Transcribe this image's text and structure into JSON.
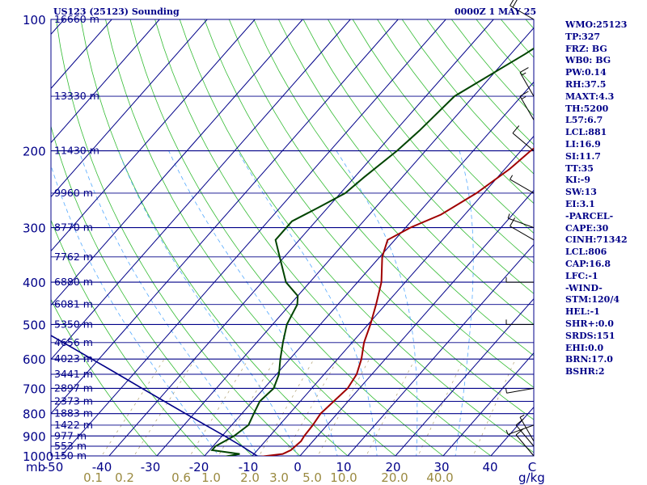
{
  "header": {
    "station": "US123 (25123) Sounding",
    "timestamp": "0000Z  1 MAY 25"
  },
  "indices": [
    "WMO:25123",
    "TP:327",
    "FRZ: BG",
    "WB0: BG",
    "PW:0.14",
    "RH:37.5",
    "MAXT:4.3",
    "TH:5200",
    "L57:6.7",
    "LCL:881",
    "LI:16.9",
    "SI:11.7",
    "TT:35",
    "KI:-9",
    "SW:13",
    "EI:3.1",
    "-PARCEL-",
    "CAPE:30",
    "CINH:71342",
    "LCL:806",
    "CAP:16.8",
    "LFC:-1",
    "-WIND-",
    "STM:120/4",
    "HEL:-1",
    "SHR+:0.0",
    "SRDS:151",
    "EHI:0.0",
    "BRN:17.0",
    "BSHR:2"
  ],
  "chart_data": {
    "type": "line",
    "title": "",
    "xlabel": "",
    "ylabel": "",
    "pressure_unit": "mb",
    "mixing_ratio_unit": "g/kg",
    "pressure_ticks": [
      100,
      200,
      300,
      400,
      500,
      600,
      700,
      800,
      900,
      1000
    ],
    "temperature_ticks": [
      "-50",
      "-40",
      "-30",
      "-20",
      "-10",
      "0",
      "10",
      "20",
      "30",
      "40",
      "C"
    ],
    "mixing_ratio_ticks": [
      "0.1",
      "0.2",
      "0.6",
      "1.0",
      "2.0",
      "3.0",
      "5.0",
      "10.0",
      "20.0",
      "40.0"
    ],
    "height_labels": [
      {
        "p": 100,
        "label": "16660 m"
      },
      {
        "p": 150,
        "label": "13330 m"
      },
      {
        "p": 200,
        "label": "11430 m"
      },
      {
        "p": 250,
        "label": "9960 m"
      },
      {
        "p": 300,
        "label": "8770 m"
      },
      {
        "p": 350,
        "label": "7762 m"
      },
      {
        "p": 400,
        "label": "6880 m"
      },
      {
        "p": 450,
        "label": "6081 m"
      },
      {
        "p": 500,
        "label": "5350 m"
      },
      {
        "p": 550,
        "label": "4656 m"
      },
      {
        "p": 600,
        "label": "4023 m"
      },
      {
        "p": 650,
        "label": "3441 m"
      },
      {
        "p": 700,
        "label": "2897 m"
      },
      {
        "p": 750,
        "label": "2373 m"
      },
      {
        "p": 800,
        "label": "1883 m"
      },
      {
        "p": 850,
        "label": "1422 m"
      },
      {
        "p": 900,
        "label": "977 m"
      },
      {
        "p": 950,
        "label": "553 m"
      },
      {
        "p": 1000,
        "label": "150 m"
      }
    ],
    "series": [
      {
        "id": "temperature",
        "color": "#a00000",
        "points": [
          [
            1005,
            -8.5
          ],
          [
            990,
            -4
          ],
          [
            970,
            -3
          ],
          [
            925,
            -2.5
          ],
          [
            900,
            -2.8
          ],
          [
            850,
            -3
          ],
          [
            800,
            -3.5
          ],
          [
            700,
            -2.5
          ],
          [
            650,
            -3.2
          ],
          [
            600,
            -5
          ],
          [
            550,
            -7.5
          ],
          [
            500,
            -9.5
          ],
          [
            450,
            -12
          ],
          [
            400,
            -15
          ],
          [
            350,
            -19.5
          ],
          [
            320,
            -21.5
          ],
          [
            300,
            -19
          ],
          [
            280,
            -15
          ],
          [
            250,
            -11.5
          ],
          [
            220,
            -9
          ],
          [
            200,
            -8
          ],
          [
            180,
            -6
          ],
          [
            150,
            2.5
          ],
          [
            120,
            10.5
          ],
          [
            100,
            16.5
          ]
        ]
      },
      {
        "id": "dewpoint",
        "color": "#004400",
        "points": [
          [
            1005,
            -16
          ],
          [
            990,
            -13
          ],
          [
            970,
            -19.5
          ],
          [
            950,
            -19.5
          ],
          [
            925,
            -18.5
          ],
          [
            900,
            -17.5
          ],
          [
            850,
            -16.5
          ],
          [
            800,
            -17.5
          ],
          [
            750,
            -18.5
          ],
          [
            700,
            -18
          ],
          [
            650,
            -19.5
          ],
          [
            600,
            -22
          ],
          [
            550,
            -24.5
          ],
          [
            500,
            -27
          ],
          [
            450,
            -28.5
          ],
          [
            430,
            -30
          ],
          [
            400,
            -35
          ],
          [
            350,
            -41
          ],
          [
            320,
            -45
          ],
          [
            290,
            -45
          ],
          [
            270,
            -42
          ],
          [
            250,
            -39
          ],
          [
            230,
            -38
          ],
          [
            200,
            -36
          ],
          [
            180,
            -35
          ],
          [
            150,
            -34
          ],
          [
            120,
            -27
          ],
          [
            100,
            -22
          ]
        ]
      },
      {
        "id": "parcel",
        "color": "#000088",
        "points": [
          [
            1005,
            -8.5
          ],
          [
            950,
            -14
          ],
          [
            900,
            -19.5
          ],
          [
            850,
            -25.5
          ],
          [
            800,
            -31.8
          ],
          [
            750,
            -38.5
          ],
          [
            700,
            -45.6
          ],
          [
            650,
            -53.2
          ],
          [
            600,
            -61.5
          ],
          [
            550,
            -70.5
          ],
          [
            500,
            -80.5
          ],
          [
            450,
            -91.5
          ],
          [
            400,
            -104
          ],
          [
            350,
            -118
          ],
          [
            300,
            -134.5
          ],
          [
            250,
            -154.5
          ],
          [
            200,
            -179.5
          ],
          [
            150,
            -213
          ],
          [
            110,
            -252
          ]
        ]
      }
    ],
    "wind_barbs": [
      {
        "p": 100,
        "dir": 300,
        "spd": 20
      },
      {
        "p": 150,
        "dir": 330,
        "spd": 15
      },
      {
        "p": 170,
        "dir": 330,
        "spd": 15
      },
      {
        "p": 200,
        "dir": 310,
        "spd": 10
      },
      {
        "p": 250,
        "dir": 300,
        "spd": 5
      },
      {
        "p": 300,
        "dir": 290,
        "spd": 5
      },
      {
        "p": 320,
        "dir": 300,
        "spd": 10
      },
      {
        "p": 400,
        "dir": 270,
        "spd": 5
      },
      {
        "p": 500,
        "dir": 270,
        "spd": 5
      },
      {
        "p": 700,
        "dir": 260,
        "spd": 5
      },
      {
        "p": 850,
        "dir": 250,
        "spd": 5
      },
      {
        "p": 925,
        "dir": 330,
        "spd": 5
      },
      {
        "p": 950,
        "dir": 320,
        "spd": 10
      },
      {
        "p": 1000,
        "dir": 320,
        "spd": 10
      }
    ]
  }
}
